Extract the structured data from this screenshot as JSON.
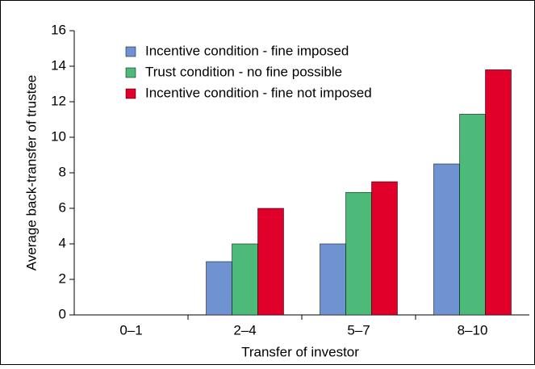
{
  "chart_data": {
    "type": "bar",
    "x_label": "Transfer of investor",
    "y_label": "Average back-transfer of trustee",
    "categories": [
      "0–1",
      "2–4",
      "5–7",
      "8–10"
    ],
    "series": [
      {
        "name": "Incentive condition - fine imposed",
        "color": "#6f93d0",
        "values": [
          null,
          3,
          4,
          8.5
        ]
      },
      {
        "name": "Trust condition - no fine possible",
        "color": "#4dba7a",
        "values": [
          null,
          4,
          6.9,
          11.3
        ]
      },
      {
        "name": "Incentive condition - fine not imposed",
        "color": "#e1002a",
        "values": [
          null,
          6,
          7.5,
          13.8
        ]
      }
    ],
    "ylim": [
      0,
      16
    ],
    "yticks": [
      0,
      2,
      4,
      6,
      8,
      10,
      12,
      14,
      16
    ],
    "legend": "upper-left"
  }
}
